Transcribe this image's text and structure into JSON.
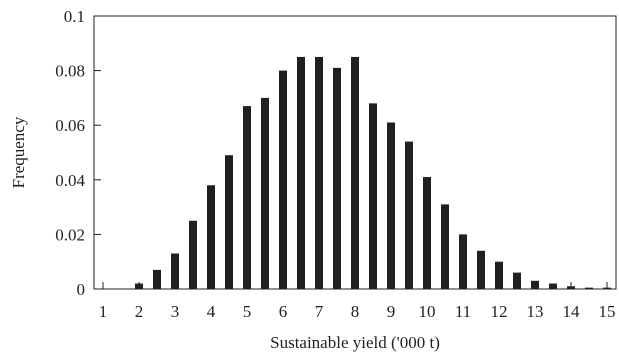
{
  "chart_data": {
    "type": "bar",
    "title": "",
    "xlabel": "Sustainable yield ('000 t)",
    "ylabel": "Frequency",
    "xlim": [
      0.75,
      15.25
    ],
    "ylim": [
      0,
      0.1
    ],
    "x_ticks": [
      1,
      2,
      3,
      4,
      5,
      6,
      7,
      8,
      9,
      10,
      11,
      12,
      13,
      14,
      15
    ],
    "x_tick_labels": [
      "1",
      "2",
      "3",
      "4",
      "5",
      "6",
      "7",
      "8",
      "9",
      "10",
      "11",
      "12",
      "13",
      "14",
      "15"
    ],
    "y_ticks": [
      0,
      0.02,
      0.04,
      0.06,
      0.08,
      0.1
    ],
    "y_tick_labels": [
      "0",
      "0.02",
      "0.04",
      "0.06",
      "0.08",
      "0.1"
    ],
    "grid": false,
    "bar_color": "#231f20",
    "x": [
      1,
      1.5,
      2,
      2.5,
      3,
      3.5,
      4,
      4.5,
      5,
      5.5,
      6,
      6.5,
      7,
      7.5,
      8,
      8.5,
      9,
      9.5,
      10,
      10.5,
      11,
      11.5,
      12,
      12.5,
      13,
      13.5,
      14,
      14.5,
      15
    ],
    "values": [
      0,
      0,
      0.002,
      0.007,
      0.013,
      0.025,
      0.038,
      0.049,
      0.067,
      0.07,
      0.08,
      0.085,
      0.085,
      0.081,
      0.085,
      0.068,
      0.061,
      0.054,
      0.041,
      0.031,
      0.02,
      0.014,
      0.01,
      0.006,
      0.003,
      0.002,
      0.001,
      0.0005,
      0.0005
    ]
  }
}
